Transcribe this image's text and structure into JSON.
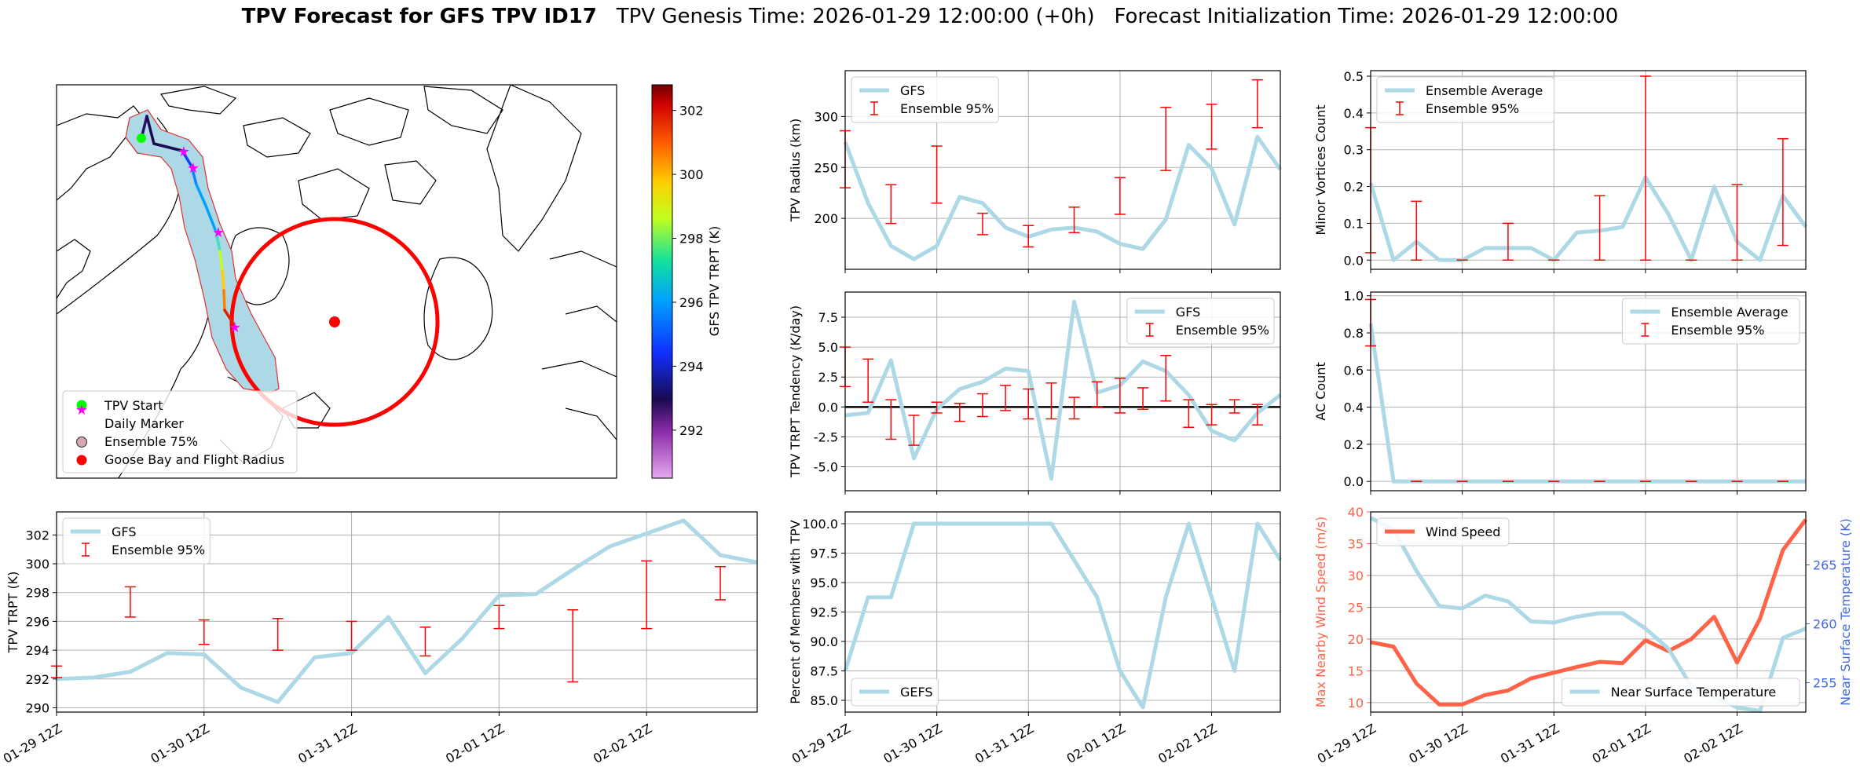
{
  "header": {
    "title_bold": "TPV Forecast for GFS TPV ID17",
    "title_genesis": "TPV Genesis Time: 2026-01-29 12:00:00 (+0h)",
    "title_init": "Forecast Initialization Time: 2026-01-29 12:00:00"
  },
  "colors": {
    "gfs_line": "#add8e6",
    "ensemble_err": "#ff0000",
    "wind": "#ff6347",
    "temp_axis": "#4169e1",
    "tpv_start": "#00ff00",
    "daily_marker": "#ff00ff",
    "goose_bay": "#ff0000"
  },
  "map_panel": {
    "colorbar_label": "GFS TPV TRPT (K)",
    "colorbar_ticks": [
      292,
      294,
      296,
      298,
      300,
      302
    ],
    "colorbar_range": [
      290.5,
      302.8
    ],
    "legend": [
      "TPV Start",
      "Daily Marker",
      "Ensemble 75%",
      "Goose Bay and Flight Radius"
    ]
  },
  "chart_data": [
    {
      "id": "radius",
      "type": "line",
      "title": "",
      "ylabel": "TPV Radius (km)",
      "ylim": [
        150,
        345
      ],
      "yticks": [
        200,
        250,
        300
      ],
      "legend": [
        "GFS",
        "Ensemble 95%"
      ],
      "legend_loc": "upper-left",
      "values": [
        275,
        215,
        173,
        160,
        173,
        221,
        215,
        191,
        182,
        189,
        191,
        187,
        175,
        170,
        199,
        272,
        249,
        194,
        280,
        248
      ],
      "errorbars": [
        [
          0,
          230,
          286
        ],
        [
          2,
          195,
          233
        ],
        [
          4,
          215,
          271
        ],
        [
          6,
          184,
          205
        ],
        [
          8,
          172,
          193
        ],
        [
          10,
          186,
          211
        ],
        [
          12,
          204,
          240
        ],
        [
          14,
          247,
          309
        ],
        [
          16,
          268,
          312
        ],
        [
          18,
          289,
          336
        ]
      ]
    },
    {
      "id": "minor",
      "type": "line",
      "ylabel": "Minor Vortices Count",
      "ylim": [
        -0.025,
        0.515
      ],
      "yticks": [
        0.0,
        0.1,
        0.2,
        0.3,
        0.4,
        0.5
      ],
      "legend": [
        "Ensemble Average",
        "Ensemble 95%"
      ],
      "legend_loc": "upper-left",
      "values": [
        0.21,
        0.0,
        0.05,
        0.0,
        0.0,
        0.033,
        0.033,
        0.033,
        0.0,
        0.075,
        0.08,
        0.09,
        0.225,
        0.125,
        0.0,
        0.2,
        0.05,
        0.0,
        0.175,
        0.09
      ],
      "errorbars": [
        [
          0,
          0.02,
          0.36
        ],
        [
          2,
          0.0,
          0.16
        ],
        [
          4,
          0.0,
          0.0
        ],
        [
          6,
          0.0,
          0.1
        ],
        [
          8,
          0.0,
          0.0
        ],
        [
          10,
          0.0,
          0.175
        ],
        [
          12,
          0.0,
          0.5
        ],
        [
          14,
          0.0,
          0.0
        ],
        [
          16,
          0.0,
          0.205
        ],
        [
          18,
          0.04,
          0.33
        ]
      ]
    },
    {
      "id": "tendency",
      "type": "line",
      "ylabel": "TPV TRPT Tendency (K/day)",
      "ylim": [
        -7.0,
        9.6
      ],
      "yticks": [
        -5.0,
        -2.5,
        0.0,
        2.5,
        5.0,
        7.5
      ],
      "legend": [
        "GFS",
        "Ensemble 95%"
      ],
      "legend_loc": "upper-right",
      "values": [
        -0.7,
        -0.5,
        3.9,
        -4.3,
        -0.2,
        1.5,
        2.1,
        3.2,
        3.0,
        -6.0,
        8.8,
        1.2,
        1.8,
        3.8,
        3.0,
        1.0,
        -2.0,
        -2.8,
        -0.5,
        1.0
      ],
      "errorbars": [
        [
          0,
          1.7,
          5.0
        ],
        [
          1,
          0.4,
          4.0
        ],
        [
          2,
          -2.7,
          0.6
        ],
        [
          3,
          -3.2,
          -0.7
        ],
        [
          4,
          -0.5,
          0.4
        ],
        [
          5,
          -1.2,
          0.3
        ],
        [
          6,
          -0.8,
          1.1
        ],
        [
          7,
          -0.3,
          1.8
        ],
        [
          8,
          -1.0,
          1.5
        ],
        [
          9,
          -1.0,
          2.0
        ],
        [
          10,
          -1.0,
          0.8
        ],
        [
          11,
          0.0,
          2.1
        ],
        [
          12,
          -0.5,
          2.4
        ],
        [
          13,
          -0.2,
          1.6
        ],
        [
          14,
          0.5,
          4.3
        ],
        [
          15,
          -1.7,
          0.6
        ],
        [
          16,
          -1.5,
          0.2
        ],
        [
          17,
          -0.5,
          0.6
        ],
        [
          18,
          -1.5,
          0.2
        ]
      ]
    },
    {
      "id": "ac",
      "type": "line",
      "ylabel": "AC Count",
      "ylim": [
        -0.05,
        1.02
      ],
      "yticks": [
        0.0,
        0.2,
        0.4,
        0.6,
        0.8,
        1.0
      ],
      "legend": [
        "Ensemble Average",
        "Ensemble 95%"
      ],
      "legend_loc": "upper-right",
      "values": [
        0.85,
        0.0,
        0.0,
        0.0,
        0.0,
        0.0,
        0.0,
        0.0,
        0.0,
        0.0,
        0.0,
        0.0,
        0.0,
        0.0,
        0.0,
        0.0,
        0.0,
        0.0,
        0.0,
        0.0
      ],
      "errorbars": [
        [
          0,
          0.73,
          0.98
        ],
        [
          2,
          0.0,
          0.0
        ],
        [
          4,
          0.0,
          0.0
        ],
        [
          6,
          0.0,
          0.0
        ],
        [
          8,
          0.0,
          0.0
        ],
        [
          10,
          0.0,
          0.0
        ],
        [
          12,
          0.0,
          0.0
        ],
        [
          14,
          0.0,
          0.0
        ],
        [
          16,
          0.0,
          0.0
        ],
        [
          18,
          0.0,
          0.0
        ]
      ]
    },
    {
      "id": "trpt",
      "type": "line",
      "ylabel": "TPV TRPT (K)",
      "ylim": [
        289.7,
        303.6
      ],
      "yticks": [
        290,
        292,
        294,
        296,
        298,
        300,
        302
      ],
      "legend": [
        "GFS",
        "Ensemble 95%"
      ],
      "legend_loc": "upper-left",
      "values": [
        292.0,
        292.1,
        292.5,
        293.8,
        293.7,
        291.4,
        290.4,
        293.5,
        293.8,
        296.3,
        292.4,
        294.8,
        297.8,
        297.9,
        299.6,
        301.2,
        302.1,
        303.0,
        300.6,
        300.1
      ],
      "errorbars": [
        [
          0,
          292.1,
          292.9
        ],
        [
          2,
          296.3,
          298.4
        ],
        [
          4,
          294.4,
          296.1
        ],
        [
          6,
          294.0,
          296.2
        ],
        [
          8,
          294.0,
          296.0
        ],
        [
          10,
          293.6,
          295.6
        ],
        [
          12,
          295.5,
          297.1
        ],
        [
          14,
          291.8,
          296.8
        ],
        [
          16,
          295.5,
          300.2
        ],
        [
          18,
          297.5,
          299.8
        ]
      ]
    },
    {
      "id": "percent",
      "type": "line",
      "ylabel": "Percent of Members with TPV",
      "ylim": [
        84.0,
        101.0
      ],
      "yticks": [
        85.0,
        87.5,
        90.0,
        92.5,
        95.0,
        97.5,
        100.0
      ],
      "legend": [
        "GEFS"
      ],
      "legend_loc": "lower-left",
      "values": [
        87.5,
        93.75,
        93.75,
        100,
        100,
        100,
        100,
        100,
        100,
        100,
        96.9,
        93.75,
        87.5,
        84.4,
        93.75,
        100,
        93.75,
        87.5,
        100,
        96.9
      ]
    },
    {
      "id": "wind_temp",
      "type": "line",
      "ylabel": "Max Nearby Wind Speed (m/s)",
      "ylim": [
        8.5,
        40.0
      ],
      "yticks": [
        10,
        15,
        20,
        25,
        30,
        35,
        40
      ],
      "y2label": "Near Surface Temperature (K)",
      "y2lim": [
        252.5,
        269.5
      ],
      "y2ticks": [
        255,
        260,
        265
      ],
      "legend": [
        "Wind Speed",
        "Near Surface Temperature"
      ],
      "legend_loc": "upper-left / lower-right",
      "wind": [
        19.5,
        18.8,
        13.0,
        9.7,
        9.7,
        11.2,
        11.9,
        13.8,
        14.7,
        15.6,
        16.4,
        16.2,
        19.8,
        18.1,
        20.0,
        23.5,
        16.3,
        23.2,
        34.0,
        38.8
      ],
      "temp": [
        269.0,
        268.0,
        264.5,
        261.5,
        261.3,
        262.4,
        261.9,
        260.2,
        260.1,
        260.6,
        260.9,
        260.9,
        259.6,
        257.9,
        254.7,
        253.8,
        252.9,
        252.6,
        258.8,
        259.6
      ]
    }
  ],
  "x_axis": {
    "tick_labels": [
      "01-29 12Z",
      "01-30 12Z",
      "01-31 12Z",
      "02-01 12Z",
      "02-02 12Z"
    ],
    "tick_indices": [
      0,
      4,
      8,
      12,
      16
    ],
    "n_points": 20
  }
}
